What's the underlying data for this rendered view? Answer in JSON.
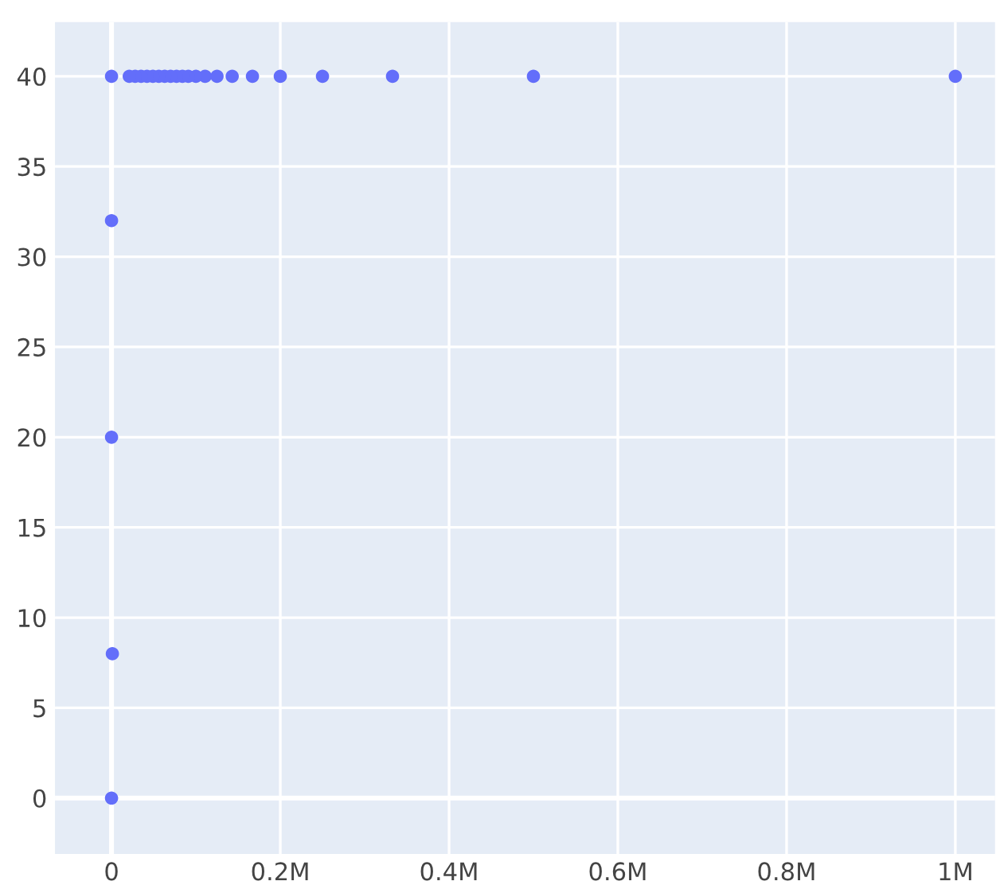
{
  "chart_data": {
    "type": "scatter",
    "color": "#636efa",
    "marker": "circle",
    "grid": true,
    "x": [
      0,
      0,
      0,
      1000,
      0,
      1000000,
      500000,
      333000,
      250000,
      200000,
      167000,
      143000,
      125000,
      111000,
      100000,
      91000,
      84000,
      77000,
      70000,
      63000,
      56000,
      49000,
      42000,
      35000,
      28000,
      21000
    ],
    "values": [
      40,
      32,
      20,
      8,
      0,
      40,
      40,
      40,
      40,
      40,
      40,
      40,
      40,
      40,
      40,
      40,
      40,
      40,
      40,
      40,
      40,
      40,
      40,
      40,
      40,
      40
    ],
    "xlim": [
      -67000,
      1047000
    ],
    "ylim": [
      -3.1,
      43
    ],
    "xticks": [
      0,
      {
        "value": 200000,
        "label": "0.2M"
      },
      {
        "value": 400000,
        "label": "0.4M"
      },
      {
        "value": 600000,
        "label": "0.6M"
      },
      {
        "value": 800000,
        "label": "0.8M"
      },
      {
        "value": 1000000,
        "label": "1M"
      }
    ],
    "yticks": [
      0,
      5,
      10,
      15,
      20,
      25,
      30,
      35,
      40
    ]
  }
}
